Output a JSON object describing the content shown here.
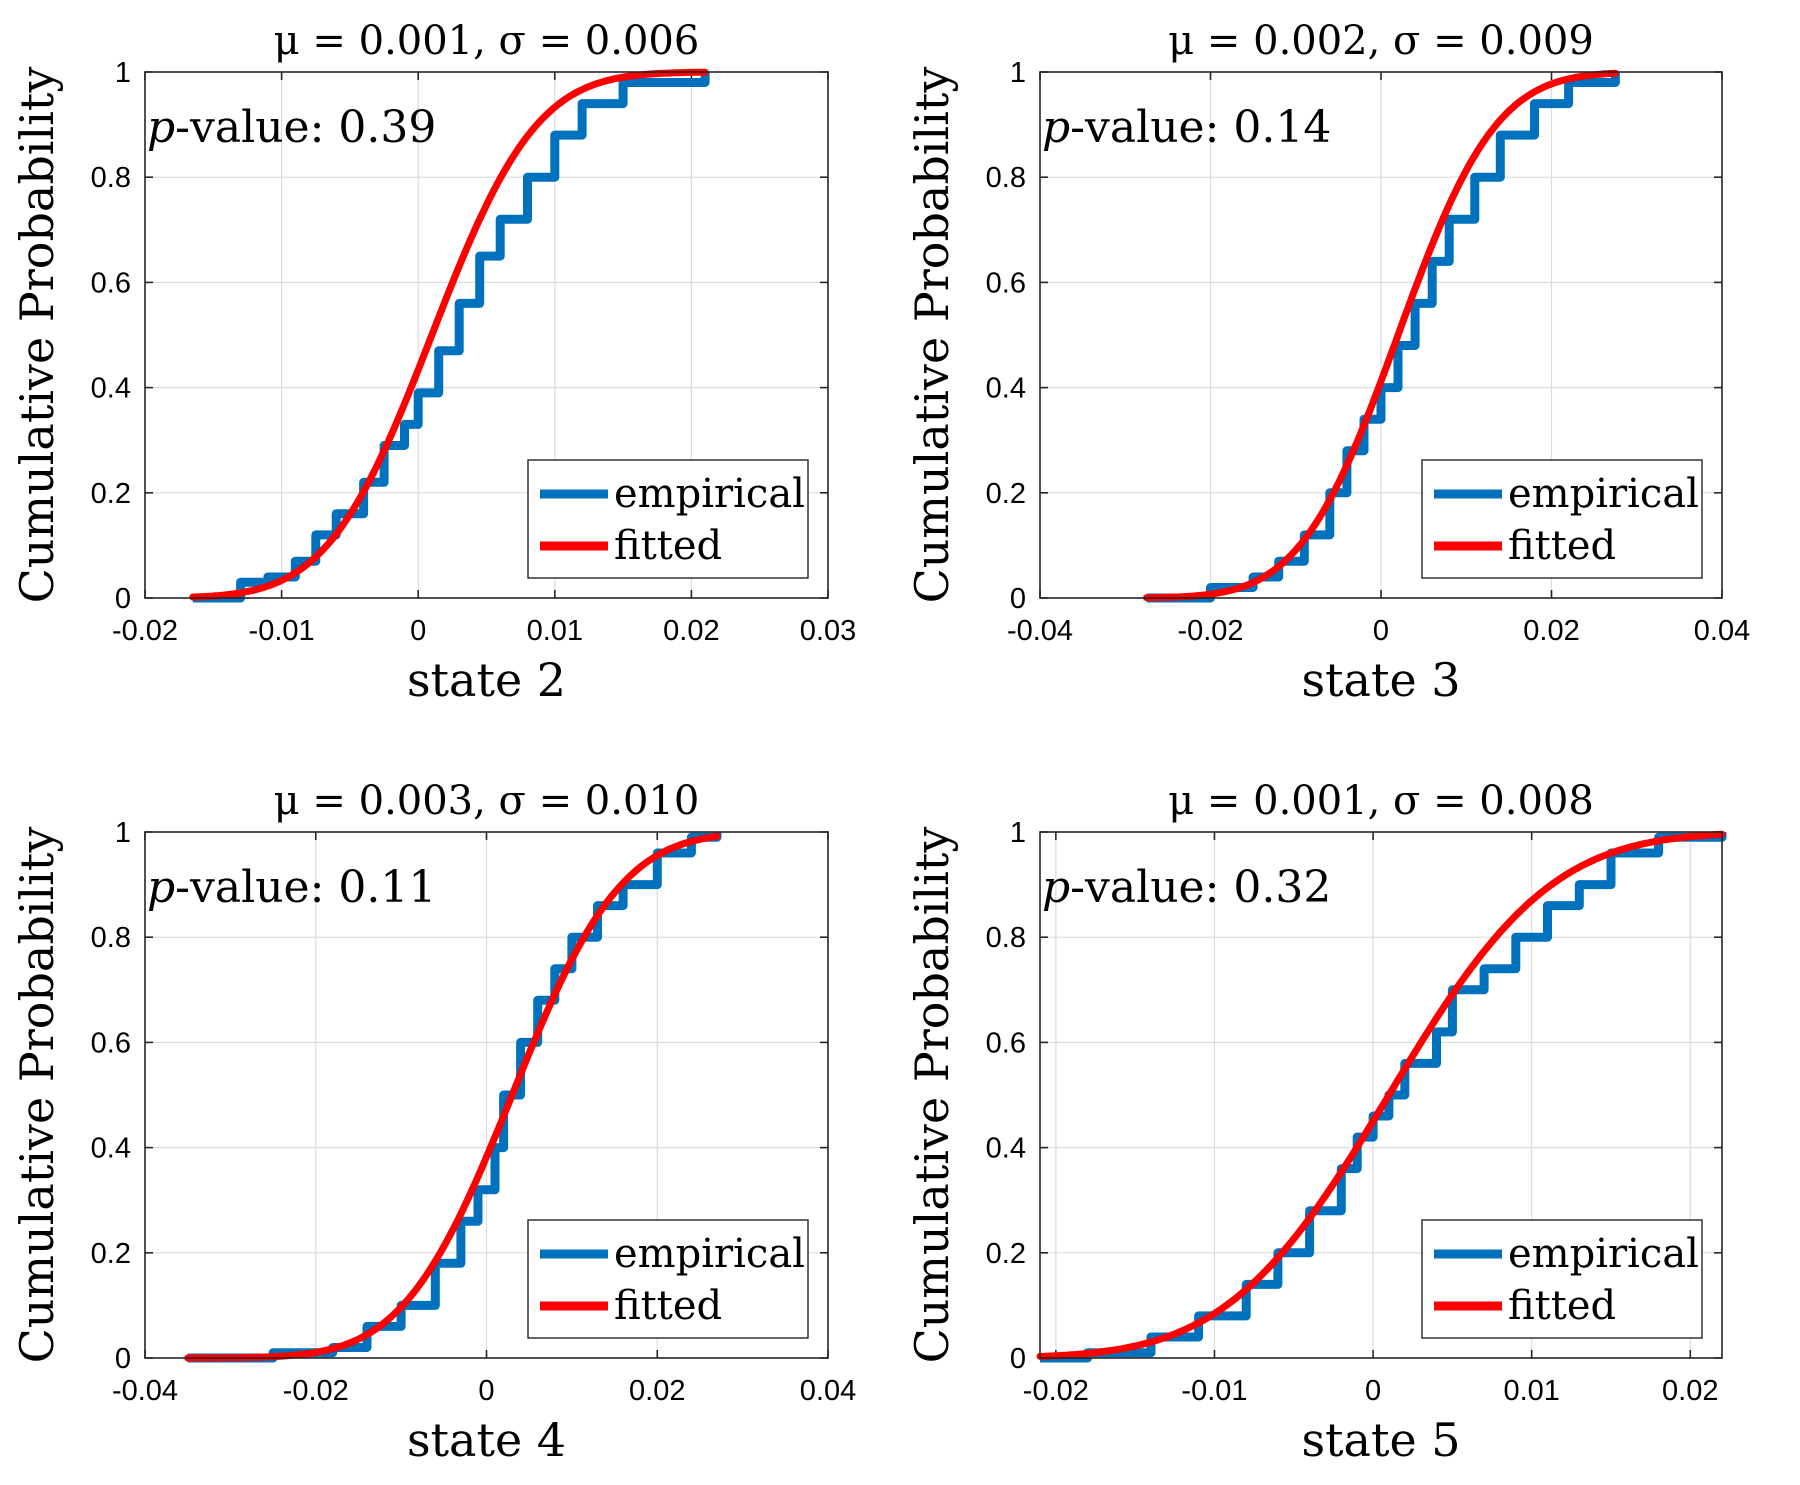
{
  "figure": {
    "ylabel": "Cumulative Probability",
    "legend": {
      "empirical_label": "empirical",
      "fitted_label": "fitted"
    },
    "colors": {
      "empirical": "#0072BD",
      "fitted": "#FF0000"
    },
    "pvalue_prefix": "-value:",
    "pvalue_p": "p"
  },
  "chart_data": [
    {
      "type": "line",
      "title": "μ = 0.001, σ = 0.006",
      "mu": 0.001,
      "sigma": 0.006,
      "xlabel": "state 2",
      "ylabel": "Cumulative Probability",
      "pvalue": "0.39",
      "xlim": [
        -0.02,
        0.03
      ],
      "ylim": [
        0,
        1
      ],
      "xticks": [
        -0.02,
        -0.01,
        0,
        0.01,
        0.02,
        0.03
      ],
      "xtick_labels": [
        "-0.02",
        "-0.01",
        "0",
        "0.01",
        "0.02",
        "0.03"
      ],
      "yticks": [
        0,
        0.2,
        0.4,
        0.6,
        0.8,
        1
      ],
      "ytick_labels": [
        "0",
        "0.2",
        "0.4",
        "0.6",
        "0.8",
        "1"
      ],
      "data_range": [
        -0.0165,
        0.021
      ],
      "grid": true,
      "legend_position": "bottom-right",
      "series": [
        {
          "name": "empirical",
          "values_x": [
            -0.0165,
            -0.013,
            -0.011,
            -0.009,
            -0.0075,
            -0.006,
            -0.004,
            -0.0025,
            -0.001,
            0,
            0.0015,
            0.003,
            0.0045,
            0.006,
            0.008,
            0.01,
            0.012,
            0.015,
            0.021
          ],
          "values_y": [
            0,
            0.03,
            0.04,
            0.07,
            0.12,
            0.16,
            0.22,
            0.29,
            0.33,
            0.39,
            0.47,
            0.56,
            0.65,
            0.72,
            0.8,
            0.88,
            0.94,
            0.98,
            1
          ]
        },
        {
          "name": "fitted",
          "cdf": "normal"
        }
      ]
    },
    {
      "type": "line",
      "title": "μ = 0.002, σ = 0.009",
      "mu": 0.002,
      "sigma": 0.009,
      "xlabel": "state 3",
      "ylabel": "Cumulative Probability",
      "pvalue": "0.14",
      "xlim": [
        -0.04,
        0.04
      ],
      "ylim": [
        0,
        1
      ],
      "xticks": [
        -0.04,
        -0.02,
        0,
        0.02,
        0.04
      ],
      "xtick_labels": [
        "-0.04",
        "-0.02",
        "0",
        "0.02",
        "0.04"
      ],
      "yticks": [
        0,
        0.2,
        0.4,
        0.6,
        0.8,
        1
      ],
      "ytick_labels": [
        "0",
        "0.2",
        "0.4",
        "0.6",
        "0.8",
        "1"
      ],
      "data_range": [
        -0.0275,
        0.0275
      ],
      "grid": true,
      "legend_position": "bottom-right",
      "series": [
        {
          "name": "empirical",
          "values_x": [
            -0.0275,
            -0.02,
            -0.015,
            -0.012,
            -0.009,
            -0.006,
            -0.004,
            -0.002,
            0,
            0.002,
            0.004,
            0.006,
            0.008,
            0.011,
            0.014,
            0.018,
            0.022,
            0.0275
          ],
          "values_y": [
            0,
            0.02,
            0.04,
            0.07,
            0.12,
            0.2,
            0.28,
            0.34,
            0.4,
            0.48,
            0.56,
            0.64,
            0.72,
            0.8,
            0.88,
            0.94,
            0.98,
            1
          ]
        },
        {
          "name": "fitted",
          "cdf": "normal"
        }
      ]
    },
    {
      "type": "line",
      "title": "μ = 0.003, σ = 0.010",
      "mu": 0.003,
      "sigma": 0.01,
      "xlabel": "state 4",
      "ylabel": "Cumulative Probability",
      "pvalue": "0.11",
      "xlim": [
        -0.04,
        0.04
      ],
      "ylim": [
        0,
        1
      ],
      "xticks": [
        -0.04,
        -0.02,
        0,
        0.02,
        0.04
      ],
      "xtick_labels": [
        "-0.04",
        "-0.02",
        "0",
        "0.02",
        "0.04"
      ],
      "yticks": [
        0,
        0.2,
        0.4,
        0.6,
        0.8,
        1
      ],
      "ytick_labels": [
        "0",
        "0.2",
        "0.4",
        "0.6",
        "0.8",
        "1"
      ],
      "data_range": [
        -0.035,
        0.027
      ],
      "grid": true,
      "legend_position": "bottom-right",
      "series": [
        {
          "name": "empirical",
          "values_x": [
            -0.035,
            -0.025,
            -0.018,
            -0.014,
            -0.01,
            -0.006,
            -0.003,
            -0.001,
            0.001,
            0.002,
            0.004,
            0.006,
            0.008,
            0.01,
            0.013,
            0.016,
            0.02,
            0.024,
            0.027
          ],
          "values_y": [
            0,
            0.01,
            0.02,
            0.06,
            0.1,
            0.18,
            0.26,
            0.32,
            0.4,
            0.5,
            0.6,
            0.68,
            0.74,
            0.8,
            0.86,
            0.9,
            0.96,
            0.99,
            1
          ]
        },
        {
          "name": "fitted",
          "cdf": "normal"
        }
      ]
    },
    {
      "type": "line",
      "title": "μ = 0.001, σ = 0.008",
      "mu": 0.001,
      "sigma": 0.008,
      "xlabel": "state 5",
      "ylabel": "Cumulative Probability",
      "pvalue": "0.32",
      "xlim": [
        -0.021,
        0.022
      ],
      "ylim": [
        0,
        1
      ],
      "xticks": [
        -0.02,
        -0.01,
        0,
        0.01,
        0.02
      ],
      "xtick_labels": [
        "-0.02",
        "-0.01",
        "0",
        "0.01",
        "0.02"
      ],
      "yticks": [
        0,
        0.2,
        0.4,
        0.6,
        0.8,
        1
      ],
      "ytick_labels": [
        "0",
        "0.2",
        "0.4",
        "0.6",
        "0.8",
        "1"
      ],
      "data_range": [
        -0.021,
        0.022
      ],
      "grid": true,
      "legend_position": "bottom-right",
      "series": [
        {
          "name": "empirical",
          "values_x": [
            -0.021,
            -0.018,
            -0.014,
            -0.011,
            -0.008,
            -0.006,
            -0.004,
            -0.002,
            -0.001,
            0,
            0.001,
            0.002,
            0.004,
            0.005,
            0.007,
            0.009,
            0.011,
            0.013,
            0.015,
            0.018,
            0.022
          ],
          "values_y": [
            0,
            0.01,
            0.04,
            0.08,
            0.14,
            0.2,
            0.28,
            0.36,
            0.42,
            0.46,
            0.5,
            0.56,
            0.62,
            0.7,
            0.74,
            0.8,
            0.86,
            0.9,
            0.96,
            0.99,
            1
          ]
        },
        {
          "name": "fitted",
          "cdf": "normal"
        }
      ]
    }
  ]
}
